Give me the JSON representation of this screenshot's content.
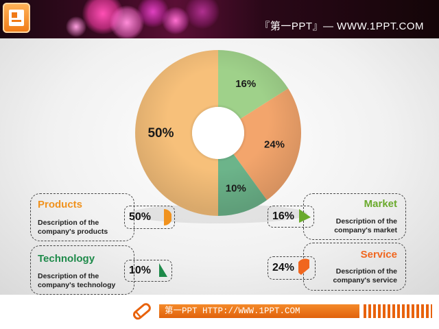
{
  "header": {
    "title": "『第一PPT』— WWW.1PPT.COM",
    "logo_icon": "powerpoint-slide-icon"
  },
  "chart_data": {
    "type": "pie",
    "variant": "donut",
    "slices": [
      {
        "label": "Market",
        "value": 16,
        "text": "16%",
        "color": "#9fd18a"
      },
      {
        "label": "Service",
        "value": 24,
        "text": "24%",
        "color": "#f3a56c"
      },
      {
        "label": "Technology",
        "value": 10,
        "text": "10%",
        "color": "#6cb48a"
      },
      {
        "label": "Products",
        "value": 50,
        "text": "50%",
        "color": "#f7c07a"
      }
    ]
  },
  "cards": {
    "products": {
      "title": "Products",
      "desc_line1": "Description of the",
      "desc_line2": "company's products",
      "pct": "50%",
      "color": "#f0921e"
    },
    "technology": {
      "title": "Technology",
      "desc_line1": "Description of the",
      "desc_line2": "company's technology",
      "pct": "10%",
      "color": "#1e8a4a"
    },
    "market": {
      "title": "Market",
      "desc_line1": "Description of the",
      "desc_line2": "company's market",
      "pct": "16%",
      "color": "#6aaa2c"
    },
    "service": {
      "title": "Service",
      "desc_line1": "Description of the",
      "desc_line2": "company's service",
      "pct": "24%",
      "color": "#f0661e"
    }
  },
  "footer": {
    "text": "第一PPT HTTP://WWW.1PPT.COM",
    "icon": "pencil-icon",
    "accent_color": "#e8620c"
  }
}
